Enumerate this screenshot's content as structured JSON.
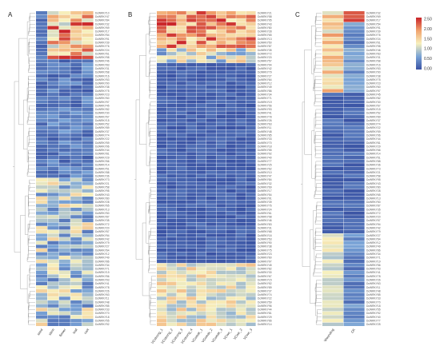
{
  "chart_data": [
    {
      "type": "heatmap",
      "panel": "A",
      "columns": [
        "seed",
        "stem",
        "flower",
        "leaf",
        "root"
      ],
      "rows": 85,
      "row_labels": "DcWRKY gene IDs (too small to read)",
      "dendrogram": "left"
    },
    {
      "type": "heatmap",
      "panel": "B",
      "columns": [
        "VCstrong_1",
        "VCstrong_2",
        "VCstrong_3",
        "VCstrong_4",
        "VCweak_1",
        "VCweak_2",
        "VCweak_3",
        "VCwe_1",
        "VCwe_2",
        "VCwe_3"
      ],
      "rows": 85,
      "dendrogram": "left"
    },
    {
      "type": "heatmap",
      "panel": "C",
      "columns": [
        "Wounding",
        "CK"
      ],
      "rows": 85,
      "dendrogram": "left"
    }
  ],
  "colorbar": {
    "ticks": [
      "2.50",
      "2.00",
      "1.50",
      "1.00",
      "0.50",
      "0.00"
    ],
    "range": [
      0,
      2.6
    ],
    "colors": [
      "#3a53a4",
      "#79a3d6",
      "#f7f0bd",
      "#f1a36d",
      "#c92228"
    ]
  },
  "row_label_text": "DcWRKY"
}
